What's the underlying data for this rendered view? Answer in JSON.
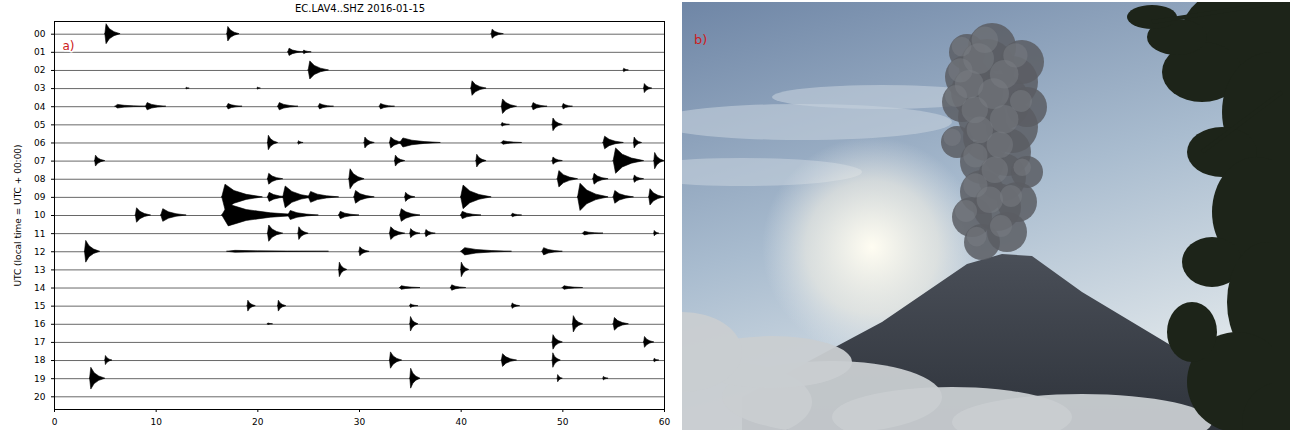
{
  "chart_data": {
    "type": "helicorder",
    "title": "EC.LAV4..SHZ 2016-01-15",
    "ylabel": "UTC (local time = UTC + 00:00)",
    "panel_label": "a)",
    "color": "#000000",
    "grid": false,
    "xlim": [
      0,
      60
    ],
    "xticks": [
      0,
      10,
      20,
      30,
      40,
      50,
      60
    ],
    "ylim": [
      -0.7,
      20.7
    ],
    "yticks": [
      {
        "value": 0,
        "label": "00"
      },
      {
        "value": 1,
        "label": "01"
      },
      {
        "value": 2,
        "label": "02"
      },
      {
        "value": 3,
        "label": "03"
      },
      {
        "value": 4,
        "label": "04"
      },
      {
        "value": 5,
        "label": "05"
      },
      {
        "value": 6,
        "label": "06"
      },
      {
        "value": 7,
        "label": "07"
      },
      {
        "value": 8,
        "label": "08"
      },
      {
        "value": 9,
        "label": "09"
      },
      {
        "value": 10,
        "label": "10"
      },
      {
        "value": 11,
        "label": "11"
      },
      {
        "value": 12,
        "label": "12"
      },
      {
        "value": 13,
        "label": "13"
      },
      {
        "value": 14,
        "label": "14"
      },
      {
        "value": 15,
        "label": "15"
      },
      {
        "value": 16,
        "label": "16"
      },
      {
        "value": 17,
        "label": "17"
      },
      {
        "value": 18,
        "label": "18"
      },
      {
        "value": 19,
        "label": "19"
      },
      {
        "value": 20,
        "label": "20"
      }
    ],
    "events": [
      {
        "hour": 0,
        "minute": 5,
        "amplitude": 0.55,
        "duration": 1.5
      },
      {
        "hour": 0,
        "minute": 17,
        "amplitude": 0.4,
        "duration": 1.2
      },
      {
        "hour": 0,
        "minute": 43,
        "amplitude": 0.25,
        "duration": 1.2
      },
      {
        "hour": 1,
        "minute": 23,
        "amplitude": 0.2,
        "duration": 1.5
      },
      {
        "hour": 1,
        "minute": 24.5,
        "amplitude": 0.1,
        "duration": 0.8
      },
      {
        "hour": 2,
        "minute": 25,
        "amplitude": 0.5,
        "duration": 2
      },
      {
        "hour": 2,
        "minute": 56,
        "amplitude": 0.1,
        "duration": 0.5
      },
      {
        "hour": 3,
        "minute": 13,
        "amplitude": 0.05,
        "duration": 0.3
      },
      {
        "hour": 3,
        "minute": 20,
        "amplitude": 0.06,
        "duration": 0.3
      },
      {
        "hour": 3,
        "minute": 41,
        "amplitude": 0.4,
        "duration": 1.5
      },
      {
        "hour": 3,
        "minute": 58,
        "amplitude": 0.25,
        "duration": 0.8
      },
      {
        "hour": 4,
        "minute": 6,
        "amplitude": 0.1,
        "duration": 3
      },
      {
        "hour": 4,
        "minute": 9,
        "amplitude": 0.2,
        "duration": 2
      },
      {
        "hour": 4,
        "minute": 17,
        "amplitude": 0.15,
        "duration": 1.5
      },
      {
        "hour": 4,
        "minute": 22,
        "amplitude": 0.2,
        "duration": 2
      },
      {
        "hour": 4,
        "minute": 26,
        "amplitude": 0.15,
        "duration": 1.5
      },
      {
        "hour": 4,
        "minute": 32,
        "amplitude": 0.15,
        "duration": 1.5
      },
      {
        "hour": 4,
        "minute": 44,
        "amplitude": 0.4,
        "duration": 1.5
      },
      {
        "hour": 4,
        "minute": 47,
        "amplitude": 0.2,
        "duration": 1.5
      },
      {
        "hour": 4,
        "minute": 50,
        "amplitude": 0.15,
        "duration": 1
      },
      {
        "hour": 5,
        "minute": 44,
        "amplitude": 0.1,
        "duration": 0.8
      },
      {
        "hour": 5,
        "minute": 49,
        "amplitude": 0.35,
        "duration": 1
      },
      {
        "hour": 6,
        "minute": 21,
        "amplitude": 0.4,
        "duration": 1
      },
      {
        "hour": 6,
        "minute": 24,
        "amplitude": 0.1,
        "duration": 0.5
      },
      {
        "hour": 6,
        "minute": 30.5,
        "amplitude": 0.3,
        "duration": 1
      },
      {
        "hour": 6,
        "minute": 33,
        "amplitude": 0.3,
        "duration": 1.5
      },
      {
        "hour": 6,
        "minute": 34,
        "amplitude": 0.25,
        "duration": 4
      },
      {
        "hour": 6,
        "minute": 44,
        "amplitude": 0.1,
        "duration": 2
      },
      {
        "hour": 6,
        "minute": 54,
        "amplitude": 0.35,
        "duration": 2
      },
      {
        "hour": 6,
        "minute": 57,
        "amplitude": 0.3,
        "duration": 0.8
      },
      {
        "hour": 7,
        "minute": 4,
        "amplitude": 0.3,
        "duration": 1
      },
      {
        "hour": 7,
        "minute": 33.5,
        "amplitude": 0.3,
        "duration": 1
      },
      {
        "hour": 7,
        "minute": 41.5,
        "amplitude": 0.35,
        "duration": 1
      },
      {
        "hour": 7,
        "minute": 49,
        "amplitude": 0.2,
        "duration": 1
      },
      {
        "hour": 7,
        "minute": 55,
        "amplitude": 0.7,
        "duration": 3
      },
      {
        "hour": 7,
        "minute": 59,
        "amplitude": 0.45,
        "duration": 1
      },
      {
        "hour": 8,
        "minute": 21,
        "amplitude": 0.3,
        "duration": 1.5
      },
      {
        "hour": 8,
        "minute": 29,
        "amplitude": 0.55,
        "duration": 1.5
      },
      {
        "hour": 8,
        "minute": 49.5,
        "amplitude": 0.45,
        "duration": 2
      },
      {
        "hour": 8,
        "minute": 53,
        "amplitude": 0.3,
        "duration": 1.5
      },
      {
        "hour": 8,
        "minute": 57,
        "amplitude": 0.2,
        "duration": 1
      },
      {
        "hour": 9,
        "minute": 16.5,
        "amplitude": 0.7,
        "duration": 4
      },
      {
        "hour": 9,
        "minute": 21,
        "amplitude": 0.25,
        "duration": 2
      },
      {
        "hour": 9,
        "minute": 22.5,
        "amplitude": 0.6,
        "duration": 3
      },
      {
        "hour": 9,
        "minute": 25,
        "amplitude": 0.3,
        "duration": 3
      },
      {
        "hour": 9,
        "minute": 29.5,
        "amplitude": 0.35,
        "duration": 2
      },
      {
        "hour": 9,
        "minute": 34.5,
        "amplitude": 0.25,
        "duration": 1
      },
      {
        "hour": 9,
        "minute": 40,
        "amplitude": 0.65,
        "duration": 3
      },
      {
        "hour": 9,
        "minute": 51.5,
        "amplitude": 0.75,
        "duration": 3
      },
      {
        "hour": 9,
        "minute": 55,
        "amplitude": 0.35,
        "duration": 2
      },
      {
        "hour": 9,
        "minute": 58.5,
        "amplitude": 0.45,
        "duration": 1.5
      },
      {
        "hour": 10,
        "minute": 8,
        "amplitude": 0.4,
        "duration": 1.5
      },
      {
        "hour": 10,
        "minute": 10.5,
        "amplitude": 0.35,
        "duration": 2.5
      },
      {
        "hour": 10,
        "minute": 16.5,
        "amplitude": 0.6,
        "duration": 8
      },
      {
        "hour": 10,
        "minute": 23,
        "amplitude": 0.25,
        "duration": 3
      },
      {
        "hour": 10,
        "minute": 28,
        "amplitude": 0.2,
        "duration": 2
      },
      {
        "hour": 10,
        "minute": 34,
        "amplitude": 0.35,
        "duration": 2
      },
      {
        "hour": 10,
        "minute": 40,
        "amplitude": 0.2,
        "duration": 2
      },
      {
        "hour": 10,
        "minute": 45,
        "amplitude": 0.1,
        "duration": 1
      },
      {
        "hour": 11,
        "minute": 21,
        "amplitude": 0.45,
        "duration": 1.5
      },
      {
        "hour": 11,
        "minute": 24,
        "amplitude": 0.35,
        "duration": 1
      },
      {
        "hour": 11,
        "minute": 33,
        "amplitude": 0.35,
        "duration": 1.5
      },
      {
        "hour": 11,
        "minute": 35,
        "amplitude": 0.25,
        "duration": 1
      },
      {
        "hour": 11,
        "minute": 36.5,
        "amplitude": 0.2,
        "duration": 1
      },
      {
        "hour": 11,
        "minute": 52,
        "amplitude": 0.1,
        "duration": 2
      },
      {
        "hour": 11,
        "minute": 59,
        "amplitude": 0.15,
        "duration": 0.5
      },
      {
        "hour": 12,
        "minute": 3,
        "amplitude": 0.6,
        "duration": 1.5
      },
      {
        "hour": 12,
        "minute": 17,
        "amplitude": 0.05,
        "duration": 10
      },
      {
        "hour": 12,
        "minute": 30,
        "amplitude": 0.25,
        "duration": 1
      },
      {
        "hour": 12,
        "minute": 40,
        "amplitude": 0.2,
        "duration": 5
      },
      {
        "hour": 12,
        "minute": 48,
        "amplitude": 0.2,
        "duration": 2
      },
      {
        "hour": 13,
        "minute": 28,
        "amplitude": 0.4,
        "duration": 0.8
      },
      {
        "hour": 13,
        "minute": 40,
        "amplitude": 0.4,
        "duration": 0.8
      },
      {
        "hour": 14,
        "minute": 34,
        "amplitude": 0.1,
        "duration": 2
      },
      {
        "hour": 14,
        "minute": 39,
        "amplitude": 0.15,
        "duration": 1.5
      },
      {
        "hour": 14,
        "minute": 50,
        "amplitude": 0.1,
        "duration": 2
      },
      {
        "hour": 15,
        "minute": 19,
        "amplitude": 0.3,
        "duration": 0.8
      },
      {
        "hour": 15,
        "minute": 22,
        "amplitude": 0.3,
        "duration": 0.8
      },
      {
        "hour": 15,
        "minute": 35,
        "amplitude": 0.1,
        "duration": 0.8
      },
      {
        "hour": 15,
        "minute": 45,
        "amplitude": 0.15,
        "duration": 0.8
      },
      {
        "hour": 16,
        "minute": 21,
        "amplitude": 0.05,
        "duration": 0.5
      },
      {
        "hour": 16,
        "minute": 35,
        "amplitude": 0.4,
        "duration": 0.8
      },
      {
        "hour": 16,
        "minute": 51,
        "amplitude": 0.45,
        "duration": 1
      },
      {
        "hour": 16,
        "minute": 55,
        "amplitude": 0.35,
        "duration": 1.5
      },
      {
        "hour": 17,
        "minute": 49,
        "amplitude": 0.4,
        "duration": 1
      },
      {
        "hour": 17,
        "minute": 58,
        "amplitude": 0.3,
        "duration": 1
      },
      {
        "hour": 18,
        "minute": 5,
        "amplitude": 0.25,
        "duration": 0.7
      },
      {
        "hour": 18,
        "minute": 33,
        "amplitude": 0.45,
        "duration": 1.2
      },
      {
        "hour": 18,
        "minute": 44,
        "amplitude": 0.35,
        "duration": 1.5
      },
      {
        "hour": 18,
        "minute": 49,
        "amplitude": 0.4,
        "duration": 0.8
      },
      {
        "hour": 18,
        "minute": 59,
        "amplitude": 0.1,
        "duration": 0.5
      },
      {
        "hour": 19,
        "minute": 3.5,
        "amplitude": 0.6,
        "duration": 1.5
      },
      {
        "hour": 19,
        "minute": 35,
        "amplitude": 0.55,
        "duration": 1
      },
      {
        "hour": 19,
        "minute": 49.5,
        "amplitude": 0.2,
        "duration": 0.5
      },
      {
        "hour": 19,
        "minute": 54,
        "amplitude": 0.1,
        "duration": 0.5
      }
    ]
  },
  "photo": {
    "panel_label": "b)"
  }
}
